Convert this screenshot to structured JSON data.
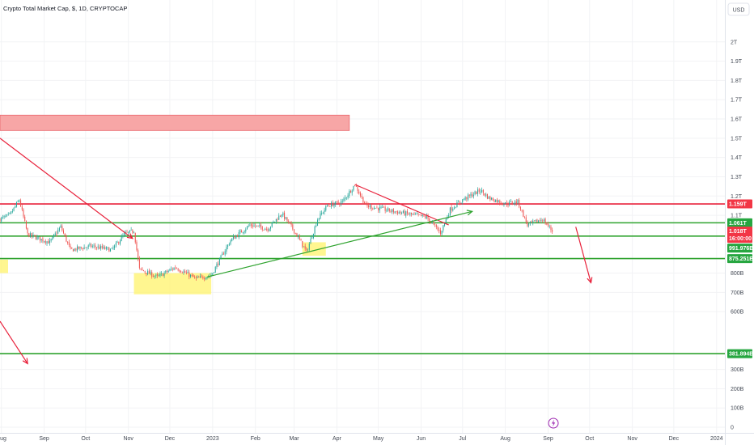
{
  "chart_data": {
    "type": "candlestick",
    "title": "Crypto Total Market Cap, $, 1D, CRYPTOCAP",
    "currency_button": "USD",
    "y_axis": {
      "scale": "linear",
      "range": [
        0,
        2100000000000
      ],
      "ticks": [
        {
          "value": 0,
          "label": "0"
        },
        {
          "value": 100000000000,
          "label": "100B"
        },
        {
          "value": 200000000000,
          "label": "200B"
        },
        {
          "value": 300000000000,
          "label": "300B"
        },
        {
          "value": 600000000000,
          "label": "600B"
        },
        {
          "value": 700000000000,
          "label": "700B"
        },
        {
          "value": 800000000000,
          "label": "800B"
        },
        {
          "value": 1100000000000,
          "label": "1.1T"
        },
        {
          "value": 1200000000000,
          "label": "1.2T"
        },
        {
          "value": 1300000000000,
          "label": "1.3T"
        },
        {
          "value": 1400000000000,
          "label": "1.4T"
        },
        {
          "value": 1500000000000,
          "label": "1.5T"
        },
        {
          "value": 1600000000000,
          "label": "1.6T"
        },
        {
          "value": 1700000000000,
          "label": "1.7T"
        },
        {
          "value": 1800000000000,
          "label": "1.8T"
        },
        {
          "value": 1900000000000,
          "label": "1.9T"
        },
        {
          "value": 2000000000000,
          "label": "2T"
        }
      ]
    },
    "x_axis": {
      "range": [
        "2022-07-31",
        "2024-01-07"
      ],
      "ticks": [
        {
          "date": "2022-08-01",
          "label": "Aug"
        },
        {
          "date": "2022-09-01",
          "label": "Sep"
        },
        {
          "date": "2022-10-01",
          "label": "Oct"
        },
        {
          "date": "2022-11-01",
          "label": "Nov"
        },
        {
          "date": "2022-12-01",
          "label": "Dec"
        },
        {
          "date": "2023-01-01",
          "label": "2023"
        },
        {
          "date": "2023-02-01",
          "label": "Feb"
        },
        {
          "date": "2023-03-01",
          "label": "Mar"
        },
        {
          "date": "2023-04-01",
          "label": "Apr"
        },
        {
          "date": "2023-05-01",
          "label": "May"
        },
        {
          "date": "2023-06-01",
          "label": "Jun"
        },
        {
          "date": "2023-07-01",
          "label": "Jul"
        },
        {
          "date": "2023-08-01",
          "label": "Aug"
        },
        {
          "date": "2023-09-01",
          "label": "Sep"
        },
        {
          "date": "2023-10-01",
          "label": "Oct"
        },
        {
          "date": "2023-11-01",
          "label": "Nov"
        },
        {
          "date": "2023-12-01",
          "label": "Dec"
        },
        {
          "date": "2024-01-01",
          "label": "2024"
        }
      ]
    },
    "price_path": [
      {
        "date": "2022-07-31",
        "value": 1080000000000
      },
      {
        "date": "2022-08-07",
        "value": 1100000000000
      },
      {
        "date": "2022-08-14",
        "value": 1180000000000
      },
      {
        "date": "2022-08-20",
        "value": 1000000000000
      },
      {
        "date": "2022-09-05",
        "value": 960000000000
      },
      {
        "date": "2022-09-13",
        "value": 1040000000000
      },
      {
        "date": "2022-09-20",
        "value": 920000000000
      },
      {
        "date": "2022-10-05",
        "value": 940000000000
      },
      {
        "date": "2022-10-20",
        "value": 920000000000
      },
      {
        "date": "2022-10-29",
        "value": 1000000000000
      },
      {
        "date": "2022-11-05",
        "value": 1020000000000
      },
      {
        "date": "2022-11-09",
        "value": 820000000000
      },
      {
        "date": "2022-11-22",
        "value": 780000000000
      },
      {
        "date": "2022-12-05",
        "value": 830000000000
      },
      {
        "date": "2022-12-20",
        "value": 770000000000
      },
      {
        "date": "2022-12-31",
        "value": 790000000000
      },
      {
        "date": "2023-01-14",
        "value": 970000000000
      },
      {
        "date": "2023-01-28",
        "value": 1050000000000
      },
      {
        "date": "2023-02-10",
        "value": 1030000000000
      },
      {
        "date": "2023-02-20",
        "value": 1110000000000
      },
      {
        "date": "2023-03-01",
        "value": 1020000000000
      },
      {
        "date": "2023-03-10",
        "value": 910000000000
      },
      {
        "date": "2023-03-18",
        "value": 1080000000000
      },
      {
        "date": "2023-03-25",
        "value": 1150000000000
      },
      {
        "date": "2023-04-05",
        "value": 1170000000000
      },
      {
        "date": "2023-04-14",
        "value": 1260000000000
      },
      {
        "date": "2023-04-22",
        "value": 1150000000000
      },
      {
        "date": "2023-05-05",
        "value": 1130000000000
      },
      {
        "date": "2023-05-20",
        "value": 1110000000000
      },
      {
        "date": "2023-06-05",
        "value": 1090000000000
      },
      {
        "date": "2023-06-15",
        "value": 1010000000000
      },
      {
        "date": "2023-06-22",
        "value": 1130000000000
      },
      {
        "date": "2023-07-01",
        "value": 1180000000000
      },
      {
        "date": "2023-07-14",
        "value": 1230000000000
      },
      {
        "date": "2023-07-20",
        "value": 1190000000000
      },
      {
        "date": "2023-08-01",
        "value": 1160000000000
      },
      {
        "date": "2023-08-10",
        "value": 1170000000000
      },
      {
        "date": "2023-08-17",
        "value": 1050000000000
      },
      {
        "date": "2023-08-28",
        "value": 1080000000000
      },
      {
        "date": "2023-09-04",
        "value": 1018000000000
      }
    ],
    "horizontal_levels": [
      {
        "value": 1159000000000,
        "label": "1.159T",
        "color": "#f23645",
        "line_color": "#e8203a"
      },
      {
        "value": 1061000000000,
        "label": "1.061T",
        "color": "#26a640",
        "line_color": "#2fa32f"
      },
      {
        "value": 991976000000,
        "label": "991.976B",
        "color": "#26a640",
        "line_color": "#2fa32f"
      },
      {
        "value": 875251000000,
        "label": "875.251B",
        "color": "#26a640",
        "line_color": "#2fa32f"
      },
      {
        "value": 381894000000,
        "label": "381.894B",
        "color": "#26a640",
        "line_color": "#2fa32f"
      }
    ],
    "last_price": {
      "value": 1018000000000,
      "label": "1.018T",
      "countdown": "16:00:00",
      "color": "#f23645"
    },
    "colors": {
      "up": "#26a69a",
      "down": "#ef5350",
      "drawing_red": "#e8203a",
      "drawing_green": "#2fa32f",
      "zone_red": "#f7a1a1",
      "zone_yellow": "#fff36b"
    },
    "drawings": {
      "zones": [
        {
          "color": "red",
          "from": "2022-07-31",
          "to": "2023-04-10",
          "top": 1620000000000,
          "bottom": 1540000000000
        },
        {
          "color": "yellow",
          "from": "2022-07-31",
          "to": "2022-08-01",
          "top": 870000000000,
          "bottom": 800000000000
        },
        {
          "color": "yellow",
          "from": "2022-11-05",
          "to": "2022-12-31",
          "top": 800000000000,
          "bottom": 690000000000
        },
        {
          "color": "yellow",
          "from": "2023-03-07",
          "to": "2023-03-24",
          "top": 960000000000,
          "bottom": 890000000000
        }
      ],
      "trend_lines": [
        {
          "color": "red",
          "from": {
            "date": "2022-07-31",
            "value": 1500000000000
          },
          "to": {
            "date": "2022-11-04",
            "value": 980000000000
          },
          "arrow": true
        },
        {
          "color": "red",
          "from": {
            "date": "2022-07-31",
            "value": 550000000000
          },
          "to": {
            "date": "2022-08-20",
            "value": 330000000000
          },
          "arrow": true
        },
        {
          "color": "red",
          "from": {
            "date": "2023-04-14",
            "value": 1260000000000
          },
          "to": {
            "date": "2023-06-21",
            "value": 1050000000000
          },
          "arrow": false
        },
        {
          "color": "red",
          "from": {
            "date": "2023-09-21",
            "value": 1040000000000
          },
          "to": {
            "date": "2023-10-02",
            "value": 750000000000
          },
          "arrow": true
        },
        {
          "color": "green",
          "from": {
            "date": "2022-12-28",
            "value": 780000000000
          },
          "to": {
            "date": "2023-07-08",
            "value": 1120000000000
          },
          "arrow": true
        }
      ]
    },
    "marker_icon": "lightning-icon"
  }
}
